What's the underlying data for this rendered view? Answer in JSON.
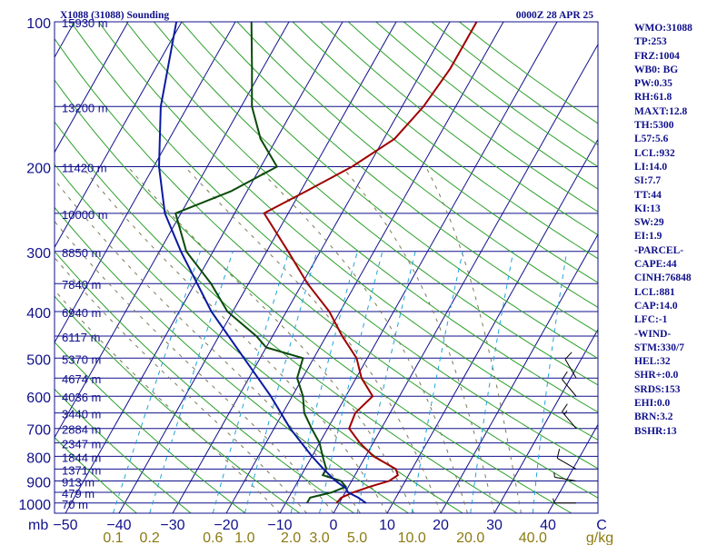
{
  "header": {
    "station": "X1088 (31088) Sounding",
    "time": "0000Z 28 APR 25"
  },
  "chart_data": {
    "type": "line",
    "pressure_labels": [
      "100",
      "200",
      "300",
      "400",
      "500",
      "600",
      "700",
      "800",
      "900",
      "1000"
    ],
    "pressure_levels": [
      100,
      200,
      300,
      400,
      500,
      600,
      700,
      800,
      900,
      1000
    ],
    "height_labels": [
      {
        "p": 100,
        "label": "15930 m"
      },
      {
        "p": 150,
        "label": "13200 m"
      },
      {
        "p": 200,
        "label": "11420 m"
      },
      {
        "p": 250,
        "label": "10000 m"
      },
      {
        "p": 300,
        "label": "8850 m"
      },
      {
        "p": 350,
        "label": "7840 m"
      },
      {
        "p": 400,
        "label": "6940 m"
      },
      {
        "p": 450,
        "label": "6117 m"
      },
      {
        "p": 500,
        "label": "5370 m"
      },
      {
        "p": 550,
        "label": "4674 m"
      },
      {
        "p": 600,
        "label": "4036 m"
      },
      {
        "p": 650,
        "label": "3440 m"
      },
      {
        "p": 700,
        "label": "2884 m"
      },
      {
        "p": 750,
        "label": "2347 m"
      },
      {
        "p": 800,
        "label": "1844 m"
      },
      {
        "p": 850,
        "label": "1371 m"
      },
      {
        "p": 900,
        "label": "913 m"
      },
      {
        "p": 950,
        "label": "479 m"
      },
      {
        "p": 1000,
        "label": "70 m"
      }
    ],
    "temp_axis_unit": "mb",
    "temp_labels": [
      "−50",
      "−40",
      "−30",
      "−20",
      "−10",
      "0",
      "10",
      "20",
      "30",
      "40",
      "C"
    ],
    "temp_ticks": [
      -50,
      -40,
      -30,
      -20,
      -10,
      0,
      10,
      20,
      30,
      40,
      50
    ],
    "mixing_ratio_unit": "g/kg",
    "mixing_ratio_labels": [
      {
        "w": 0.1,
        "label": "0.1"
      },
      {
        "w": 0.2,
        "label": "0.2"
      },
      {
        "w": 0.6,
        "label": "0.6"
      },
      {
        "w": 1.0,
        "label": "1.0"
      },
      {
        "w": 2.0,
        "label": "2.0"
      },
      {
        "w": 3.0,
        "label": "3.0"
      },
      {
        "w": 5.0,
        "label": "5.0"
      },
      {
        "w": 10.0,
        "label": "10.0"
      },
      {
        "w": 20.0,
        "label": "20.0"
      },
      {
        "w": 40.0,
        "label": "40.0"
      }
    ],
    "series": [
      {
        "role": "temperature",
        "color": "#a00000",
        "points": [
          [
            1000,
            -0.5
          ],
          [
            975,
            -0.2
          ],
          [
            950,
            1.5
          ],
          [
            925,
            4
          ],
          [
            900,
            7
          ],
          [
            875,
            8
          ],
          [
            850,
            7
          ],
          [
            800,
            1.5
          ],
          [
            750,
            -2.5
          ],
          [
            700,
            -6
          ],
          [
            650,
            -6.5
          ],
          [
            600,
            -5
          ],
          [
            550,
            -9
          ],
          [
            500,
            -12
          ],
          [
            450,
            -17
          ],
          [
            400,
            -22
          ],
          [
            350,
            -29
          ],
          [
            300,
            -36
          ],
          [
            250,
            -44.5
          ],
          [
            225,
            -39
          ],
          [
            200,
            -33
          ],
          [
            175,
            -28
          ],
          [
            150,
            -26
          ],
          [
            125,
            -25
          ],
          [
            100,
            -25
          ]
        ]
      },
      {
        "role": "dewpoint",
        "color": "#0a4a0a",
        "points": [
          [
            1000,
            -6
          ],
          [
            975,
            -6
          ],
          [
            950,
            -2.5
          ],
          [
            925,
            -0.5
          ],
          [
            900,
            -2
          ],
          [
            875,
            -6
          ],
          [
            850,
            -6
          ],
          [
            800,
            -8
          ],
          [
            750,
            -10
          ],
          [
            700,
            -13
          ],
          [
            650,
            -16
          ],
          [
            600,
            -18
          ],
          [
            550,
            -21
          ],
          [
            500,
            -22
          ],
          [
            475,
            -30
          ],
          [
            450,
            -33
          ],
          [
            400,
            -41
          ],
          [
            350,
            -47
          ],
          [
            300,
            -55
          ],
          [
            250,
            -61
          ],
          [
            225,
            -53
          ],
          [
            200,
            -47
          ],
          [
            175,
            -53
          ],
          [
            150,
            -58
          ],
          [
            125,
            -62
          ],
          [
            100,
            -67
          ]
        ]
      },
      {
        "role": "parcel",
        "color": "#0a1aa0",
        "points": [
          [
            1000,
            5
          ],
          [
            975,
            3
          ],
          [
            950,
            0.5
          ],
          [
            932,
            -0.3
          ],
          [
            900,
            -3
          ],
          [
            850,
            -6.5
          ],
          [
            800,
            -10
          ],
          [
            700,
            -17
          ],
          [
            600,
            -24
          ],
          [
            500,
            -33
          ],
          [
            400,
            -44
          ],
          [
            300,
            -56
          ],
          [
            250,
            -63
          ],
          [
            200,
            -69
          ],
          [
            150,
            -75
          ],
          [
            100,
            -81
          ]
        ]
      }
    ],
    "wind_barbs": [
      {
        "p": 550,
        "dir": 330,
        "speed": 10
      },
      {
        "p": 600,
        "dir": 320,
        "speed": 10
      },
      {
        "p": 700,
        "dir": 320,
        "speed": 15
      },
      {
        "p": 850,
        "dir": 300,
        "speed": 10
      },
      {
        "p": 900,
        "dir": 280,
        "speed": 5
      },
      {
        "p": 1000,
        "dir": 270,
        "speed": 5
      }
    ]
  },
  "panel": [
    "WMO:31088",
    "TP:253",
    "FRZ:1004",
    "WB0: BG",
    "PW:0.35",
    "RH:61.8",
    "MAXT:12.8",
    "TH:5300",
    "L57:5.6",
    "LCL:932",
    "LI:14.0",
    "SI:7.7",
    "TT:44",
    "KI:13",
    "SW:29",
    "EI:1.9",
    "-PARCEL-",
    "CAPE:44",
    "CINH:76848",
    "LCL:881",
    "CAP:14.0",
    "LFC:-1",
    "-WIND-",
    "STM:330/7",
    "HEL:32",
    "SHR+:0.0",
    "SRDS:153",
    "EHI:0.0",
    "BRN:3.2",
    "BSHR:13"
  ],
  "colors": {
    "isobar": "#10108c",
    "isotherm": "#10108c",
    "dry_adiabat": "#2ca02c",
    "mixing_ratio": "#1fa3d8",
    "moist_adiabat": "#7a7a5a",
    "label": "#10108c",
    "mixing_label": "#8c7a10"
  }
}
